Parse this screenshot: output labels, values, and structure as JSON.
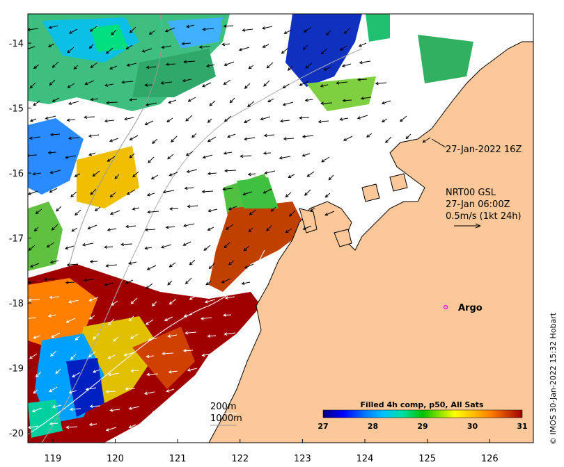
{
  "map": {
    "lon_ticks": [
      "119",
      "120",
      "121",
      "122",
      "123",
      "124",
      "125",
      "126"
    ],
    "lat_ticks": [
      "-14",
      "-15",
      "-16",
      "-17",
      "-18",
      "-19",
      "-20"
    ],
    "lon_range": [
      118.6,
      126.7
    ],
    "lat_range": [
      -20.15,
      -13.55
    ],
    "colors": {
      "land": "#fcc899",
      "cloud": "#ffffff",
      "coast": "#000000"
    }
  },
  "annotations": {
    "timestamp": "27-Jan-2022 16Z",
    "current_source": "NRT00 GSL",
    "current_time": "27-Jan 06:00Z",
    "arrow_scale": "0.5m/s (1kt 24h)",
    "argo_label": "Argo",
    "contour_200": "200m",
    "contour_1000": "1000m",
    "credit": "© IMOS 30-Jan-2022 15:32 Hobart"
  },
  "argo": {
    "lon": 125.28,
    "lat": -18.0,
    "color": "#ff00ff"
  },
  "colorbar": {
    "title": "Filled 4h comp, p50, All Sats",
    "ticks": [
      "27",
      "28",
      "29",
      "30",
      "31"
    ],
    "min": 27,
    "max": 31,
    "stops": [
      "#000080",
      "#0000ff",
      "#0080ff",
      "#00c0ff",
      "#00e0a0",
      "#00c000",
      "#80e000",
      "#ffff00",
      "#ffc000",
      "#ff8000",
      "#d04000",
      "#a00000"
    ]
  }
}
